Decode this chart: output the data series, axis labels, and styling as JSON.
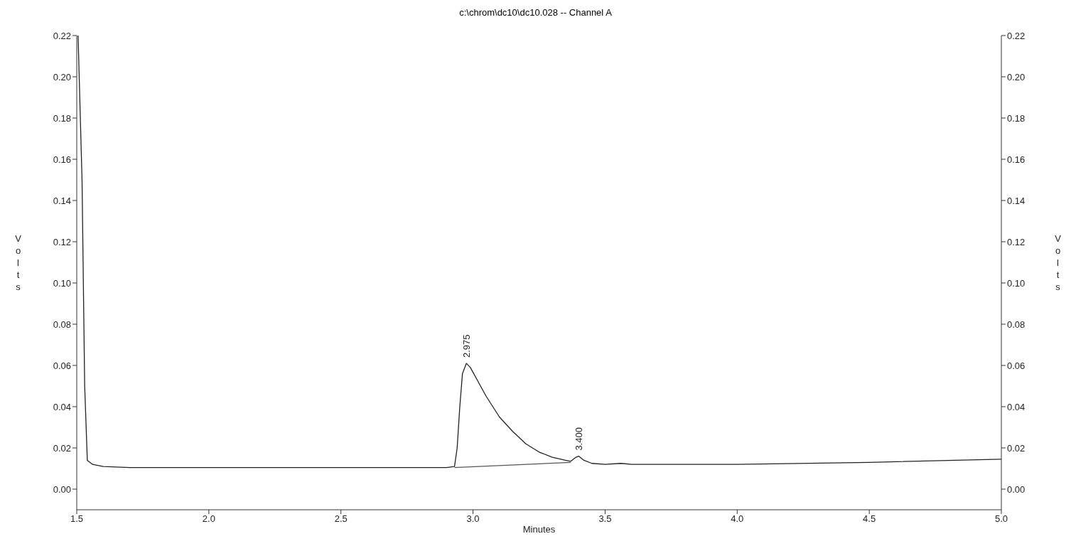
{
  "chart_data": {
    "type": "line",
    "title": "c:\\chrom\\dc10\\dc10.028 -- Channel A",
    "xlabel": "Minutes",
    "ylabel": "Volts",
    "y2label": "Volts",
    "xlim": [
      1.5,
      5.0
    ],
    "xticks": [
      {
        "value": 1.5,
        "label": "1.5"
      },
      {
        "value": 2,
        "label": "2.0"
      },
      {
        "value": 2.5,
        "label": "2.5"
      },
      {
        "value": 3,
        "label": "3.0"
      },
      {
        "value": 3.5,
        "label": "3.5"
      },
      {
        "value": 4,
        "label": "4.0"
      },
      {
        "value": 4.5,
        "label": "4.5"
      },
      {
        "value": 5,
        "label": "5.0"
      }
    ],
    "ylim": [
      -0.01,
      0.22
    ],
    "yticks": [
      {
        "value": 0,
        "label": "0.00"
      },
      {
        "value": 0.02,
        "label": "0.02"
      },
      {
        "value": 0.04,
        "label": "0.04"
      },
      {
        "value": 0.06,
        "label": "0.06"
      },
      {
        "value": 0.08,
        "label": "0.08"
      },
      {
        "value": 0.1,
        "label": "0.10"
      },
      {
        "value": 0.12,
        "label": "0.12"
      },
      {
        "value": 0.14,
        "label": "0.14"
      },
      {
        "value": 0.16,
        "label": "0.16"
      },
      {
        "value": 0.18,
        "label": "0.18"
      },
      {
        "value": 0.2,
        "label": "0.20"
      },
      {
        "value": 0.22,
        "label": "0.22"
      }
    ],
    "y2lim": [
      -0.01,
      0.22
    ],
    "y2ticks": [
      {
        "value": 0,
        "label": "0.00"
      },
      {
        "value": 0.02,
        "label": "0.02"
      },
      {
        "value": 0.04,
        "label": "0.04"
      },
      {
        "value": 0.06,
        "label": "0.06"
      },
      {
        "value": 0.08,
        "label": "0.08"
      },
      {
        "value": 0.1,
        "label": "0.10"
      },
      {
        "value": 0.12,
        "label": "0.12"
      },
      {
        "value": 0.14,
        "label": "0.14"
      },
      {
        "value": 0.16,
        "label": "0.16"
      },
      {
        "value": 0.18,
        "label": "0.18"
      },
      {
        "value": 0.2,
        "label": "0.20"
      },
      {
        "value": 0.22,
        "label": "0.22"
      }
    ],
    "marker": "none",
    "series": [
      {
        "color": "#222222",
        "x": [
          1.505,
          1.52,
          1.53,
          1.54,
          1.56,
          1.6,
          1.7,
          2.0,
          2.5,
          2.9,
          2.93,
          2.94,
          2.95,
          2.96,
          2.975,
          2.99,
          3.02,
          3.05,
          3.1,
          3.15,
          3.2,
          3.25,
          3.3,
          3.35,
          3.37,
          3.39,
          3.4,
          3.42,
          3.45,
          3.5,
          3.56,
          3.6,
          4.0,
          4.5,
          5.0
        ],
        "values": [
          0.22,
          0.15,
          0.05,
          0.014,
          0.012,
          0.011,
          0.0105,
          0.0105,
          0.0105,
          0.0105,
          0.011,
          0.02,
          0.04,
          0.056,
          0.061,
          0.059,
          0.052,
          0.045,
          0.035,
          0.028,
          0.022,
          0.018,
          0.0155,
          0.014,
          0.0135,
          0.0155,
          0.016,
          0.014,
          0.0125,
          0.012,
          0.0125,
          0.012,
          0.012,
          0.013,
          0.0145
        ]
      },
      {
        "type": "line",
        "color": "#555555",
        "x": [
          2.93,
          3.37
        ],
        "values": [
          0.0105,
          0.013
        ]
      }
    ],
    "annotations": [
      {
        "text": "2.975",
        "x": 2.975,
        "y": 0.061
      },
      {
        "text": "3.400",
        "x": 3.4,
        "y": 0.016
      }
    ]
  }
}
